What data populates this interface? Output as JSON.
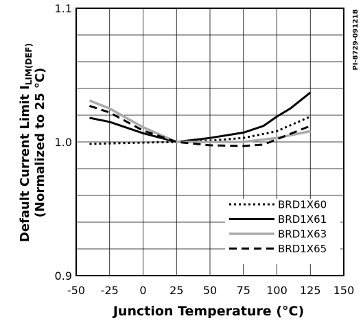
{
  "figure_id": "PI-8729-091218",
  "chart_data": {
    "type": "line",
    "xlabel": "Junction Temperature (°C)",
    "ylabel": {
      "main": "Default Current Limit I",
      "subscript": "LIM(DEF)",
      "line2": "(Normalized to 25 °C)"
    },
    "xlim": [
      -50,
      150
    ],
    "ylim": [
      0.9,
      1.1
    ],
    "x_ticks": [
      -50,
      -25,
      0,
      25,
      50,
      75,
      100,
      125,
      150
    ],
    "y_ticks": [
      {
        "value": 0.9,
        "label": "0.9"
      },
      {
        "value": 1.0,
        "label": "1.0"
      },
      {
        "value": 1.1,
        "label": "1.1"
      }
    ],
    "grid": true,
    "legend_position": "bottom-right",
    "series": [
      {
        "name": "BRD1X60",
        "style": "dotted",
        "color": "#000000",
        "x": [
          -40,
          0,
          25,
          50,
          75,
          100,
          125
        ],
        "y": [
          0.9985,
          0.9995,
          1.0,
          1.001,
          1.003,
          1.008,
          1.019
        ]
      },
      {
        "name": "BRD1X61",
        "style": "solid",
        "color": "#000000",
        "x": [
          -40,
          -25,
          0,
          25,
          50,
          75,
          90,
          100,
          110,
          125
        ],
        "y": [
          1.018,
          1.015,
          1.0065,
          1.0,
          1.003,
          1.007,
          1.012,
          1.019,
          1.025,
          1.037
        ]
      },
      {
        "name": "BRD1X63",
        "style": "solid",
        "color": "#aaaaaa",
        "x": [
          -40,
          -25,
          0,
          25,
          50,
          75,
          100,
          125
        ],
        "y": [
          1.031,
          1.025,
          1.011,
          1.0,
          1.0,
          1.0,
          1.003,
          1.008
        ]
      },
      {
        "name": "BRD1X65",
        "style": "dashed",
        "color": "#000000",
        "x": [
          -40,
          -25,
          0,
          25,
          50,
          75,
          90,
          100,
          110,
          125
        ],
        "y": [
          1.027,
          1.022,
          1.0085,
          1.0,
          0.9975,
          0.997,
          0.998,
          1.002,
          1.006,
          1.012
        ]
      }
    ]
  }
}
